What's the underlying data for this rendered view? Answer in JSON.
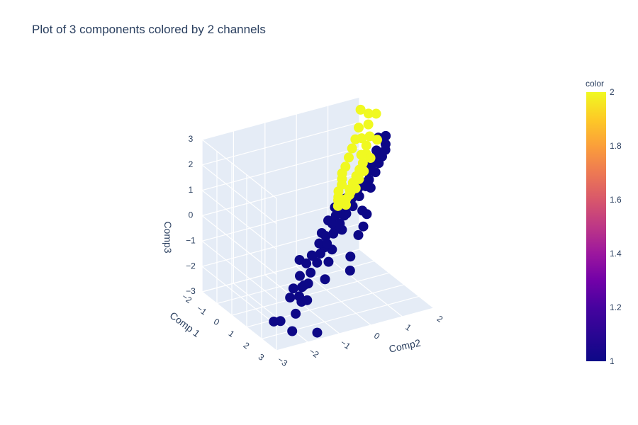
{
  "chart_data": {
    "type": "scatter",
    "title": "Plot of 3 components colored by 2 channels",
    "x_title": "Comp 1",
    "y_title": "Comp2",
    "z_title": "Comp3",
    "x_ticks": [
      "−2",
      "−1",
      "0",
      "1",
      "2",
      "3"
    ],
    "y_ticks": [
      "−3",
      "−2",
      "−1",
      "0",
      "1",
      "2"
    ],
    "z_ticks": [
      "−3",
      "−2",
      "−1",
      "0",
      "1",
      "2",
      "3"
    ],
    "colorbar": {
      "title": "color",
      "ticks": [
        "2",
        "1.8",
        "1.6",
        "1.4",
        "1.2",
        "1"
      ],
      "range": [
        1,
        2
      ]
    },
    "colors": {
      "1": "#0d0887",
      "2": "#f0f921"
    },
    "series": [
      {
        "color_value": 1,
        "x": [
          3.2,
          3.0,
          2.6,
          2.4,
          2.2,
          2.0,
          1.9,
          1.8,
          1.7,
          1.6,
          1.5,
          1.4,
          1.3,
          1.2,
          1.1,
          1.0,
          0.9,
          0.8,
          0.7,
          0.6,
          0.5,
          0.4,
          0.3,
          0.2,
          0.1,
          0.0,
          -0.1,
          -0.2,
          -0.3,
          -0.4,
          -0.5,
          -0.6,
          -0.7,
          -0.8,
          -0.9,
          -1.0,
          -1.1,
          -1.2,
          -1.3,
          -1.5,
          1.2,
          0.8,
          0.4,
          0.0,
          -0.4,
          -0.8,
          1.6,
          1.0,
          0.6,
          0.2,
          -0.2,
          -0.6,
          -1.0,
          0.9,
          0.3,
          -0.3,
          -0.9,
          1.4,
          0.5,
          -0.5,
          1.1,
          0.1,
          -1.4,
          -1.7,
          -2.0,
          0.7,
          -0.1,
          1.3,
          2.1,
          -0.7
        ],
        "y": [
          -1.8,
          -2.5,
          -2.2,
          -2.8,
          -1.9,
          -2.4,
          -1.6,
          -2.0,
          -1.3,
          -1.8,
          -1.0,
          -1.5,
          -0.8,
          -1.2,
          -0.5,
          -0.9,
          -0.2,
          -0.6,
          0.1,
          -0.3,
          0.4,
          0.0,
          0.7,
          0.3,
          1.0,
          0.6,
          1.3,
          0.9,
          1.5,
          1.2,
          1.8,
          1.4,
          2.0,
          1.7,
          2.2,
          1.9,
          2.4,
          2.1,
          2.5,
          2.6,
          0.2,
          0.8,
          1.1,
          0.5,
          1.6,
          1.0,
          0.0,
          -0.4,
          -0.1,
          0.2,
          0.4,
          0.8,
          1.5,
          -1.0,
          -0.6,
          0.0,
          0.7,
          -0.7,
          -0.3,
          0.3,
          0.5,
          1.1,
          2.3,
          2.4,
          2.6,
          -1.1,
          -0.8,
          -1.4,
          -1.6,
          0.9
        ],
        "z": [
          -2.6,
          -2.4,
          -2.0,
          -2.2,
          -1.6,
          -2.5,
          -1.4,
          -1.8,
          -1.1,
          -1.6,
          -0.9,
          -1.3,
          -0.7,
          -1.0,
          -0.5,
          -0.9,
          -0.3,
          -0.6,
          -0.1,
          -0.5,
          0.1,
          -0.2,
          0.2,
          0.0,
          0.4,
          0.1,
          0.6,
          0.2,
          0.7,
          0.4,
          0.8,
          0.5,
          1.0,
          0.7,
          1.1,
          0.8,
          1.2,
          0.9,
          1.3,
          1.5,
          -1.2,
          -0.4,
          -0.2,
          -0.8,
          0.3,
          -0.1,
          -1.5,
          -1.3,
          -1.1,
          -0.6,
          -0.3,
          0.0,
          0.4,
          -2.0,
          -1.3,
          -0.9,
          -0.4,
          -1.7,
          -1.0,
          -0.6,
          -0.5,
          -0.2,
          0.6,
          0.9,
          1.2,
          -2.2,
          -1.6,
          -2.4,
          -1.9,
          -0.7
        ]
      },
      {
        "color_value": 2,
        "x": [
          -1.5,
          -1.4,
          -1.2,
          -1.1,
          -1.0,
          -0.9,
          -0.8,
          -0.7,
          -0.6,
          -0.5,
          -0.4,
          -0.3,
          -0.2,
          -0.1,
          0.0,
          0.1,
          0.2,
          0.3,
          0.4,
          0.5,
          0.6,
          0.7,
          0.8,
          0.9,
          1.0,
          -1.3,
          -0.6,
          -0.2,
          0.2,
          0.5,
          -1.6,
          -0.4,
          0.3,
          0.8,
          -0.8
        ],
        "y": [
          1.8,
          2.0,
          1.6,
          1.9,
          1.4,
          1.7,
          1.2,
          1.6,
          1.0,
          1.4,
          0.8,
          1.2,
          0.6,
          1.0,
          0.5,
          0.8,
          0.4,
          0.6,
          0.2,
          0.5,
          0.1,
          0.3,
          0.0,
          0.2,
          -0.1,
          2.2,
          1.9,
          1.5,
          1.1,
          0.7,
          2.1,
          1.3,
          0.9,
          0.4,
          1.5
        ],
        "z": [
          2.8,
          2.2,
          2.3,
          1.9,
          2.0,
          1.7,
          1.8,
          1.5,
          1.6,
          1.3,
          1.4,
          1.2,
          1.3,
          1.1,
          1.2,
          1.0,
          1.1,
          0.9,
          1.0,
          0.8,
          0.9,
          0.8,
          0.9,
          0.7,
          0.8,
          2.6,
          2.0,
          1.6,
          1.4,
          1.0,
          2.5,
          1.7,
          1.2,
          1.1,
          2.1
        ]
      }
    ]
  }
}
